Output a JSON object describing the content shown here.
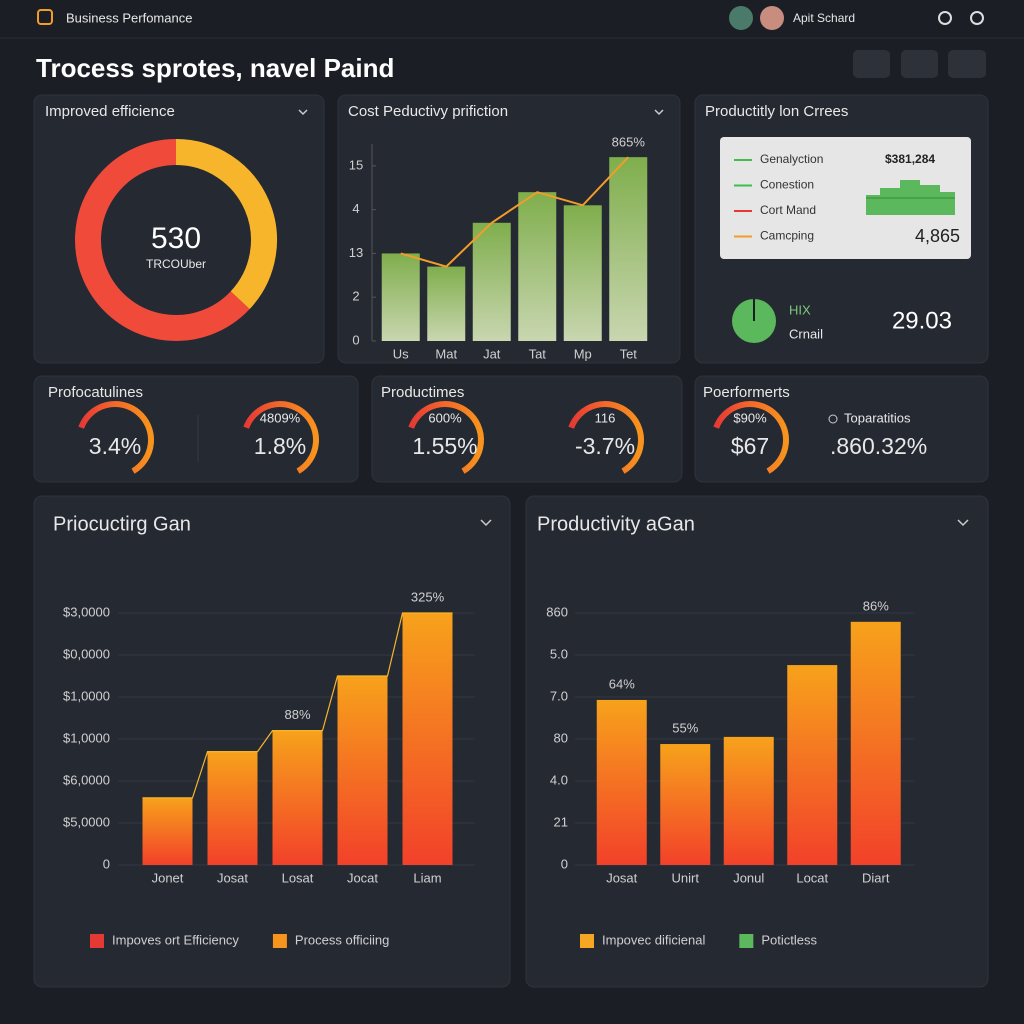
{
  "header": {
    "brand": "Business Perfomance",
    "user": "Apit Schard"
  },
  "title": "Trocess sprotes, navel Paind",
  "efficiency": {
    "title": "Improved efficience",
    "value": "530",
    "caption": "TRCOUber",
    "segments": [
      {
        "color": "#f7b52c",
        "value": 37
      },
      {
        "color": "#ef4a3a",
        "value": 63
      }
    ]
  },
  "cost": {
    "title": "Cost Peductivy prifiction",
    "categories": [
      "Us",
      "Mat",
      "Jat",
      "Tat",
      "Mp",
      "Tet"
    ],
    "values": [
      2.0,
      1.7,
      2.7,
      3.4,
      3.1,
      4.2
    ],
    "bar_labels": [
      null,
      null,
      null,
      null,
      null,
      "865%"
    ],
    "ylim": [
      0,
      4.5
    ],
    "yticks": [
      0,
      {
        "value": 1,
        "label": "2"
      },
      {
        "value": 2,
        "label": "13"
      },
      {
        "value": 3,
        "label": "4"
      },
      {
        "value": 4,
        "label": "15"
      }
    ],
    "color": "#9dbb6c",
    "line_color": "#f39c2a"
  },
  "crees": {
    "title": "Productitly lon Crrees",
    "legend": [
      {
        "name": "Genalyction",
        "color": "#3fbf4a"
      },
      {
        "name": "Conestion",
        "color": "#3fbf4a"
      },
      {
        "name": "Cort Mand",
        "color": "#e53935"
      },
      {
        "name": "Camcping",
        "color": "#f39c2a"
      }
    ],
    "amount": "$381,284",
    "total": "4,865",
    "badge": "HIX",
    "badge_caption": "Crnail",
    "score": "29.03"
  },
  "kpis": [
    {
      "title": "Profocatulines",
      "gauges": [
        {
          "value": "3.4%"
        },
        {
          "top": "4809%",
          "value": "1.8%"
        }
      ]
    },
    {
      "title": "Productimes",
      "gauges": [
        {
          "top": "600%",
          "value": "1.55%"
        },
        {
          "top": "116",
          "value": "-3.7%"
        }
      ]
    },
    {
      "title": "Poerformerts",
      "gauges": [
        {
          "top": "$90%",
          "value": "$67"
        }
      ],
      "extra": {
        "label": "Toparatitios",
        "value": ".860.32%"
      }
    }
  ],
  "gain_left": {
    "title": "Priocuctirg Gan",
    "categories": [
      "Jonet",
      "Josat",
      "Losat",
      "Jocat",
      "Liam"
    ],
    "values": [
      1.6,
      2.7,
      3.2,
      4.5,
      6.0
    ],
    "bar_labels": [
      null,
      null,
      "88%",
      null,
      "325%"
    ],
    "ylim": [
      0,
      6.3
    ],
    "yticks": [
      0,
      {
        "value": 1,
        "label": "$5,0000"
      },
      {
        "value": 2,
        "label": "$6,0000"
      },
      {
        "value": 3,
        "label": "$1,0000"
      },
      {
        "value": 4,
        "label": "$1,0000"
      },
      {
        "value": 5,
        "label": "$0,0000"
      },
      {
        "value": 6,
        "label": "$3,0000"
      }
    ],
    "gradient": [
      "#f7a21b",
      "#f2412a"
    ],
    "legend": [
      {
        "name": "Impoves ort Efficiency",
        "color": "#e53935"
      },
      {
        "name": "Process officiing",
        "color": "#f7941d"
      }
    ]
  },
  "gain_right": {
    "title": "Productivity aGan",
    "categories": [
      "Josat",
      "Unirt",
      "Jonul",
      "Locat",
      "Diart"
    ],
    "values": [
      3.93,
      2.88,
      3.05,
      4.76,
      5.79
    ],
    "bar_labels": [
      "64%",
      "55%",
      null,
      null,
      "86%"
    ],
    "ylim": [
      0,
      6.3
    ],
    "yticks": [
      0,
      {
        "value": 1,
        "label": "21"
      },
      {
        "value": 2,
        "label": "4.0"
      },
      {
        "value": 3,
        "label": "80"
      },
      {
        "value": 4,
        "label": "7.0"
      },
      {
        "value": 5,
        "label": "5.0"
      },
      {
        "value": 6,
        "label": "860"
      }
    ],
    "gradient": [
      "#f7a21b",
      "#f2412a"
    ],
    "legend": [
      {
        "name": "Impovec dificienal",
        "color": "#f5a623"
      },
      {
        "name": "Potictless",
        "color": "#5cb85c"
      }
    ]
  }
}
